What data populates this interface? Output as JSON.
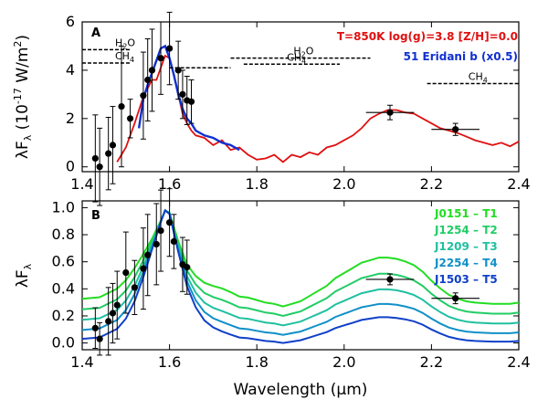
{
  "chart_data": [
    {
      "type": "line",
      "panel_label": "A",
      "ylabel": "λF_λ (10^-17 W/m^2)",
      "xlim": [
        1.4,
        2.4
      ],
      "ylim": [
        -0.2,
        6.0
      ],
      "x_ticks": [
        "1.4",
        "1.6",
        "1.8",
        "2.0",
        "2.2",
        "2.4"
      ],
      "y_ticks": [
        "0",
        "2",
        "4",
        "6"
      ],
      "model_label": "T=850K   log(g)=3.8   [Z/H]=0.0",
      "object_label": "51 Eridani b (x0.5)",
      "colors": {
        "model": "#e01010",
        "object": "#1030d0",
        "points": "#000000"
      },
      "series": [
        {
          "name": "T=850K log(g)=3.8 [Z/H]=0.0",
          "x": [
            1.48,
            1.5,
            1.52,
            1.54,
            1.56,
            1.57,
            1.58,
            1.59,
            1.6,
            1.61,
            1.62,
            1.63,
            1.64,
            1.65,
            1.66,
            1.68,
            1.7,
            1.72,
            1.74,
            1.76,
            1.78,
            1.8,
            1.82,
            1.84,
            1.86,
            1.88,
            1.9,
            1.92,
            1.94,
            1.96,
            1.98,
            2.0,
            2.02,
            2.04,
            2.06,
            2.08,
            2.1,
            2.12,
            2.14,
            2.16,
            2.18,
            2.2,
            2.22,
            2.24,
            2.26,
            2.28,
            2.3,
            2.32,
            2.34,
            2.36,
            2.38,
            2.4
          ],
          "y": [
            0.2,
            0.8,
            1.8,
            2.9,
            3.6,
            3.6,
            4.1,
            4.6,
            4.5,
            3.8,
            3.0,
            2.2,
            1.8,
            1.5,
            1.3,
            1.2,
            0.9,
            1.1,
            0.7,
            0.8,
            0.5,
            0.3,
            0.35,
            0.5,
            0.2,
            0.5,
            0.4,
            0.6,
            0.5,
            0.8,
            0.9,
            1.1,
            1.3,
            1.6,
            2.0,
            2.2,
            2.35,
            2.35,
            2.25,
            2.2,
            2.0,
            1.8,
            1.6,
            1.5,
            1.4,
            1.25,
            1.1,
            1.0,
            0.9,
            1.0,
            0.85,
            1.05
          ]
        },
        {
          "name": "51 Eridani b (x0.5)",
          "x": [
            1.53,
            1.54,
            1.55,
            1.56,
            1.57,
            1.58,
            1.59,
            1.6,
            1.61,
            1.62,
            1.63,
            1.64,
            1.65,
            1.66,
            1.68,
            1.7,
            1.72,
            1.74,
            1.76
          ],
          "y": [
            1.6,
            2.8,
            3.4,
            3.9,
            4.4,
            4.9,
            5.0,
            4.5,
            3.8,
            3.0,
            2.4,
            2.0,
            1.8,
            1.5,
            1.3,
            1.2,
            1.0,
            0.9,
            0.7
          ]
        }
      ],
      "points": [
        {
          "x": 1.43,
          "y": 0.35,
          "yerr": 1.8
        },
        {
          "x": 1.44,
          "y": 0.0,
          "yerr": 1.6
        },
        {
          "x": 1.46,
          "y": 0.55,
          "yerr": 1.5
        },
        {
          "x": 1.47,
          "y": 0.9,
          "yerr": 1.6
        },
        {
          "x": 1.49,
          "y": 2.5,
          "yerr": 2.5
        },
        {
          "x": 1.51,
          "y": 2.0,
          "yerr": 0.8
        },
        {
          "x": 1.54,
          "y": 2.95,
          "yerr": 1.8
        },
        {
          "x": 1.55,
          "y": 3.6,
          "yerr": 1.7
        },
        {
          "x": 1.56,
          "y": 4.0,
          "yerr": 1.7
        },
        {
          "x": 1.58,
          "y": 4.5,
          "yerr": 1.5
        },
        {
          "x": 1.6,
          "y": 4.9,
          "yerr": 1.5
        },
        {
          "x": 1.62,
          "y": 4.0,
          "yerr": 1.2
        },
        {
          "x": 1.63,
          "y": 3.0,
          "yerr": 1.0
        },
        {
          "x": 1.64,
          "y": 2.75,
          "yerr": 1.0
        },
        {
          "x": 1.65,
          "y": 2.7,
          "yerr": 0.9
        },
        {
          "x": 2.105,
          "y": 2.25,
          "xerr": 0.055,
          "yerr": 0.3
        },
        {
          "x": 2.255,
          "y": 1.55,
          "xerr": 0.055,
          "yerr": 0.25
        }
      ],
      "molecule_bands": [
        {
          "label": "H2O",
          "x0": 1.4,
          "x1": 1.51,
          "y": 4.85
        },
        {
          "label": "CH4",
          "x0": 1.4,
          "x1": 1.51,
          "y": 4.3
        },
        {
          "label": "",
          "x0": 1.6,
          "x1": 1.74,
          "y": 4.1
        },
        {
          "label": "H2O",
          "x0": 1.74,
          "x1": 2.06,
          "y": 4.5
        },
        {
          "label": "CH4",
          "x0": 1.77,
          "x1": 1.99,
          "y": 4.25
        },
        {
          "label": "CH4",
          "x0": 2.19,
          "x1": 2.4,
          "y": 3.45
        }
      ]
    },
    {
      "type": "line",
      "panel_label": "B",
      "xlabel": "Wavelength (μm)",
      "ylabel": "λF_λ",
      "xlim": [
        1.4,
        2.4
      ],
      "ylim": [
        -0.05,
        1.05
      ],
      "x_ticks": [
        "1.4",
        "1.6",
        "1.8",
        "2.0",
        "2.2",
        "2.4"
      ],
      "y_ticks": [
        "0.0",
        "0.2",
        "0.4",
        "0.6",
        "0.8",
        "1.0"
      ],
      "series": [
        {
          "name": "J0151 – T1",
          "color": "#22dd22",
          "offset": 0.27,
          "amp": 0.95
        },
        {
          "name": "J1254 – T2",
          "color": "#22cc66",
          "offset": 0.2,
          "amp": 0.82
        },
        {
          "name": "J1209 – T3",
          "color": "#20c0a0",
          "offset": 0.13,
          "amp": 0.7
        },
        {
          "name": "J2254 – T4",
          "color": "#1090c8",
          "offset": 0.06,
          "amp": 0.6
        },
        {
          "name": "J1503 – T5",
          "color": "#1040c8",
          "offset": 0.0,
          "amp": 0.5
        }
      ],
      "base_shape": {
        "x": [
          1.4,
          1.44,
          1.48,
          1.5,
          1.52,
          1.54,
          1.56,
          1.58,
          1.59,
          1.6,
          1.62,
          1.64,
          1.66,
          1.68,
          1.7,
          1.72,
          1.74,
          1.76,
          1.78,
          1.8,
          1.82,
          1.84,
          1.86,
          1.88,
          1.9,
          1.92,
          1.94,
          1.96,
          1.98,
          2.0,
          2.02,
          2.04,
          2.06,
          2.08,
          2.1,
          2.12,
          2.14,
          2.16,
          2.18,
          2.2,
          2.22,
          2.24,
          2.26,
          2.28,
          2.3,
          2.34,
          2.38,
          2.4
        ],
        "y": [
          0.06,
          0.08,
          0.18,
          0.28,
          0.42,
          0.58,
          0.74,
          0.9,
          0.98,
          0.96,
          0.72,
          0.5,
          0.36,
          0.26,
          0.2,
          0.16,
          0.12,
          0.08,
          0.07,
          0.05,
          0.03,
          0.02,
          0.0,
          0.02,
          0.04,
          0.08,
          0.12,
          0.16,
          0.22,
          0.26,
          0.3,
          0.34,
          0.36,
          0.38,
          0.38,
          0.37,
          0.35,
          0.32,
          0.27,
          0.2,
          0.14,
          0.09,
          0.06,
          0.04,
          0.03,
          0.02,
          0.02,
          0.03
        ]
      },
      "points": [
        {
          "x": 1.43,
          "y": 0.11,
          "yerr": 0.15
        },
        {
          "x": 1.44,
          "y": 0.03,
          "yerr": 0.12
        },
        {
          "x": 1.46,
          "y": 0.16,
          "yerr": 0.25
        },
        {
          "x": 1.47,
          "y": 0.22,
          "yerr": 0.22
        },
        {
          "x": 1.48,
          "y": 0.28,
          "yerr": 0.25
        },
        {
          "x": 1.5,
          "y": 0.52,
          "yerr": 0.3
        },
        {
          "x": 1.52,
          "y": 0.41,
          "yerr": 0.2
        },
        {
          "x": 1.54,
          "y": 0.55,
          "yerr": 0.3
        },
        {
          "x": 1.55,
          "y": 0.65,
          "yerr": 0.3
        },
        {
          "x": 1.57,
          "y": 0.73,
          "yerr": 0.3
        },
        {
          "x": 1.58,
          "y": 0.83,
          "yerr": 0.3
        },
        {
          "x": 1.6,
          "y": 0.89,
          "yerr": 0.25
        },
        {
          "x": 1.61,
          "y": 0.75,
          "yerr": 0.2
        },
        {
          "x": 1.63,
          "y": 0.58,
          "yerr": 0.2
        },
        {
          "x": 1.64,
          "y": 0.56,
          "yerr": 0.2
        },
        {
          "x": 2.105,
          "y": 0.47,
          "xerr": 0.055,
          "yerr": 0.04
        },
        {
          "x": 2.255,
          "y": 0.33,
          "xerr": 0.055,
          "yerr": 0.04
        }
      ]
    }
  ]
}
